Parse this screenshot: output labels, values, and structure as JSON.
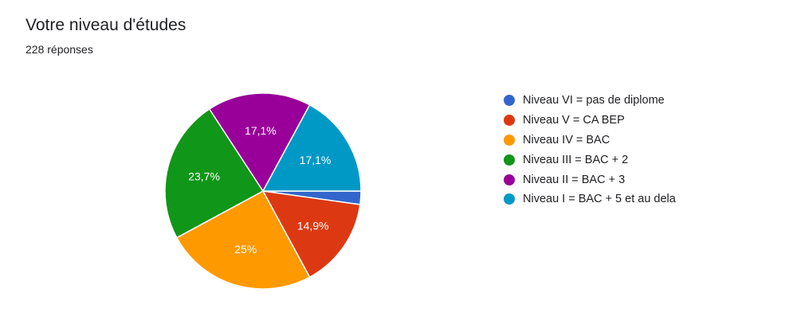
{
  "header": {
    "title": "Votre niveau d'études",
    "subtitle": "228 réponses"
  },
  "chart_data": {
    "type": "pie",
    "title": "Votre niveau d'études",
    "labels": [
      "Niveau VI = pas de diplome",
      "Niveau V = CA BEP",
      "Niveau IV = BAC",
      "Niveau III = BAC + 2",
      "Niveau II = BAC + 3",
      "Niveau I = BAC + 5 et au dela"
    ],
    "values": [
      2.2,
      14.9,
      25,
      23.7,
      17.1,
      17.1
    ],
    "data_labels": [
      "",
      "14,9%",
      "25%",
      "23,7%",
      "17,1%",
      "17,1%"
    ],
    "colors": [
      "#3366cc",
      "#dc3912",
      "#ff9900",
      "#109618",
      "#990099",
      "#0099c6"
    ],
    "legend_position": "right"
  }
}
